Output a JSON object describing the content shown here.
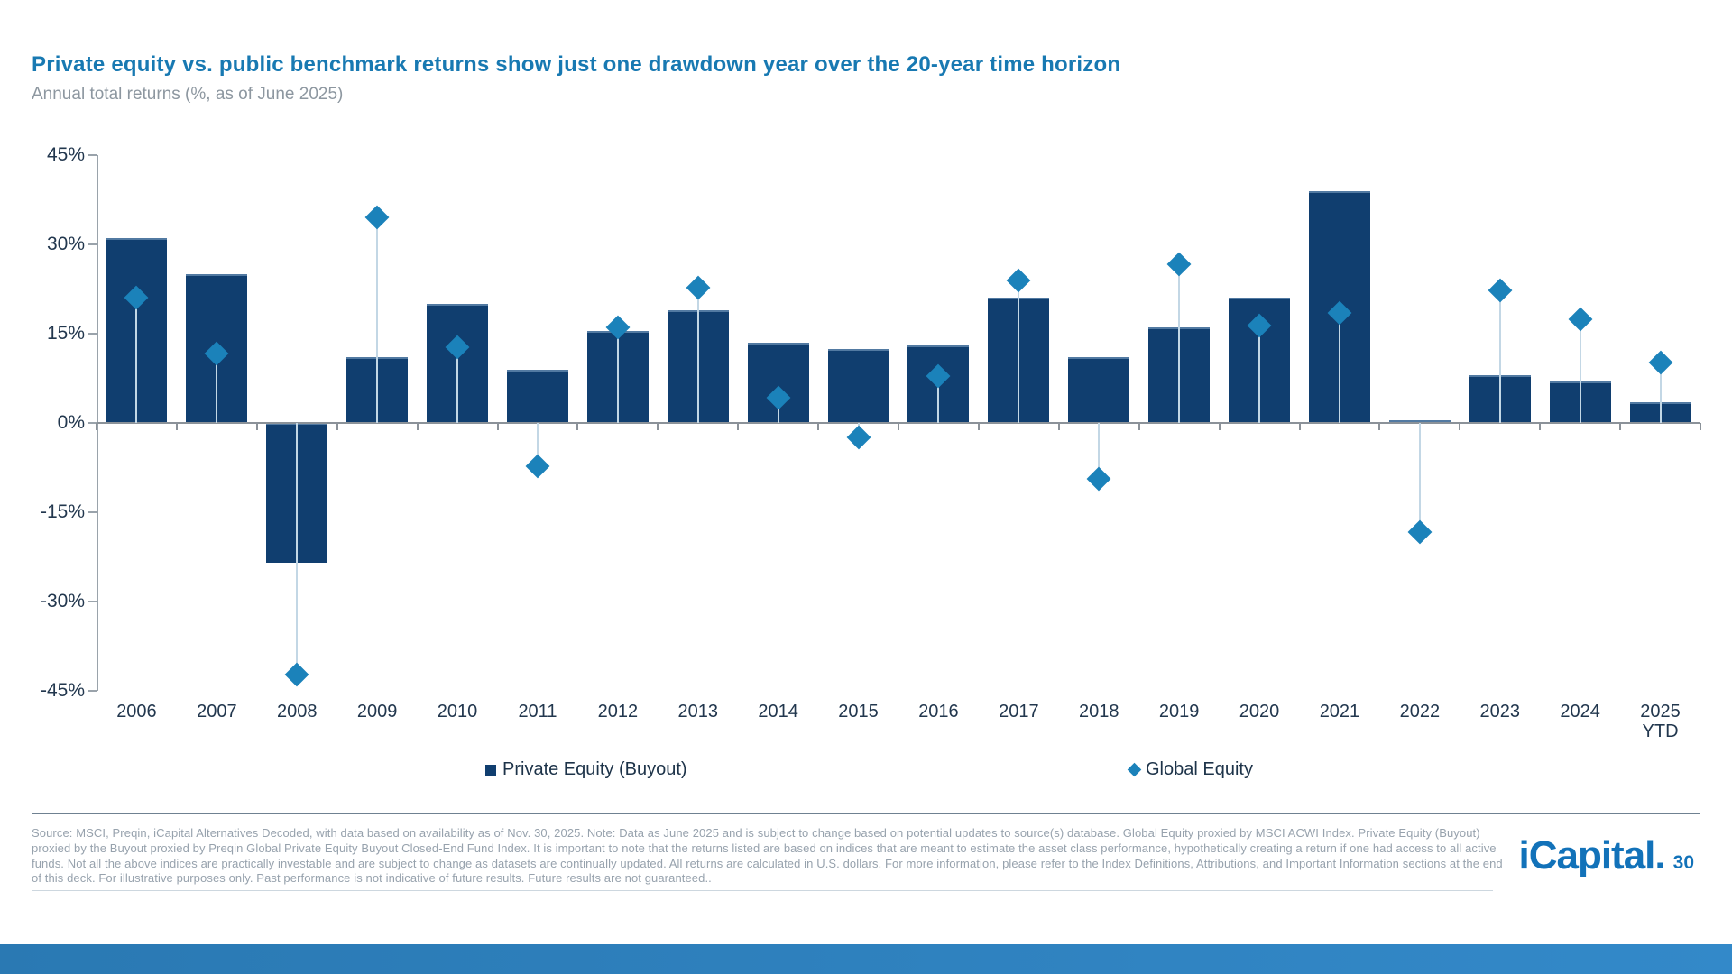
{
  "slide": {
    "title": "Private equity vs. public benchmark returns show just one drawdown year over the 20-year time horizon",
    "subtitle": "Annual total returns (%, as of June 2025)"
  },
  "chart_data": {
    "type": "bar",
    "title": "Private equity vs. public benchmark returns show just one drawdown year over the 20-year time horizon",
    "subtitle": "Annual total returns (%, as of June 2025)",
    "categories": [
      "2006",
      "2007",
      "2008",
      "2009",
      "2010",
      "2011",
      "2012",
      "2013",
      "2014",
      "2015",
      "2016",
      "2017",
      "2018",
      "2019",
      "2020",
      "2021",
      "2022",
      "2023",
      "2024",
      "2025|YTD"
    ],
    "series": [
      {
        "name": "Private Equity (Buyout)",
        "render": "bar",
        "color": "#103e6f",
        "values": [
          31,
          25,
          -23.5,
          11,
          20,
          9,
          15.5,
          19,
          13.5,
          12.5,
          13,
          21,
          11,
          16,
          21,
          39,
          0.5,
          8,
          7,
          3.5
        ]
      },
      {
        "name": "Global Equity",
        "render": "diamond",
        "color": "#1b82ba",
        "values": [
          21.0,
          11.7,
          -42.2,
          34.6,
          12.7,
          -7.3,
          16.1,
          22.8,
          4.2,
          -2.4,
          7.9,
          24.0,
          -9.4,
          26.6,
          16.3,
          18.5,
          -18.4,
          22.2,
          17.5,
          10.1
        ]
      }
    ],
    "ylim": [
      -45,
      45
    ],
    "ytick_values": [
      45,
      30,
      15,
      0,
      -15,
      -30,
      -45
    ],
    "ytick_labels": [
      "45%",
      "30%",
      "15%",
      "0%",
      "-15%",
      "-30%",
      "-45%"
    ],
    "grid": false,
    "legend_position": "bottom"
  },
  "legend": {
    "items": [
      {
        "label": "Private Equity (Buyout)",
        "marker": "square",
        "color": "#103e6f"
      },
      {
        "label": "Global Equity",
        "marker": "diamond",
        "color": "#1b82ba"
      }
    ]
  },
  "footer": {
    "source_text": "Source: MSCI, Preqin, iCapital Alternatives Decoded, with data based on availability as of Nov. 30, 2025. Note: Data as June 2025 and is subject to change based on potential updates to source(s) database. Global Equity proxied by MSCI ACWI Index. Private Equity (Buyout) proxied by the Buyout proxied by Preqin Global Private Equity Buyout Closed-End Fund Index. It is important to note that the returns listed are based on indices that are meant to estimate the asset class performance, hypothetically creating a return if one had access to all active funds. Not all the above indices are practically investable and are subject to change as datasets are continually updated. All returns are calculated in U.S. dollars. For more information, please refer to the Index Definitions, Attributions, and Important Information sections at the end of this deck. For illustrative purposes only. Past performance is not indicative of future results. Future results are not guaranteed..",
    "logo_text": "iCapital.",
    "page_number": "30"
  },
  "colors": {
    "title_blue": "#1879b2",
    "bar_navy": "#103e6f",
    "diamond_blue": "#1b82ba",
    "stem_light_blue": "#c3d7e5",
    "axis_gray": "#8b9299",
    "footer_gray": "#97a2ad",
    "logo_blue": "#1272b9",
    "bottom_bar_blue": "#2f80bd"
  }
}
